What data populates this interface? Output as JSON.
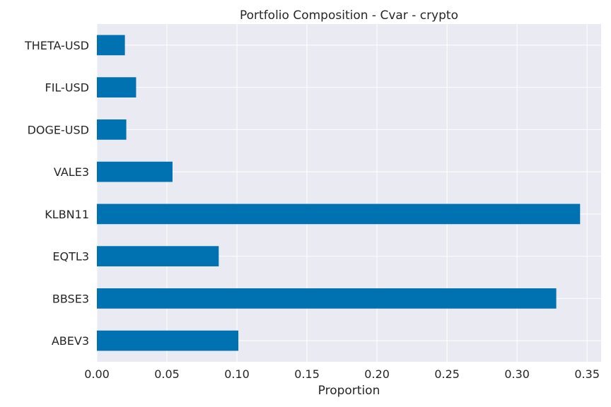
{
  "chart_data": {
    "type": "bar",
    "orientation": "horizontal",
    "title": "Portfolio Composition - Cvar - crypto",
    "xlabel": "Proportion",
    "ylabel": "",
    "categories": [
      "ABEV3",
      "BBSE3",
      "EQTL3",
      "KLBN11",
      "VALE3",
      "DOGE-USD",
      "FIL-USD",
      "THETA-USD"
    ],
    "values": [
      0.101,
      0.328,
      0.087,
      0.345,
      0.054,
      0.021,
      0.028,
      0.02
    ],
    "xlim": [
      0.0,
      0.36
    ],
    "xticks": [
      "0.00",
      "0.05",
      "0.10",
      "0.15",
      "0.20",
      "0.25",
      "0.30",
      "0.35"
    ],
    "grid": true,
    "colors": {
      "bar": "#0072b2",
      "plot_background": "#eaeaf2",
      "grid": "#ffffff"
    }
  }
}
